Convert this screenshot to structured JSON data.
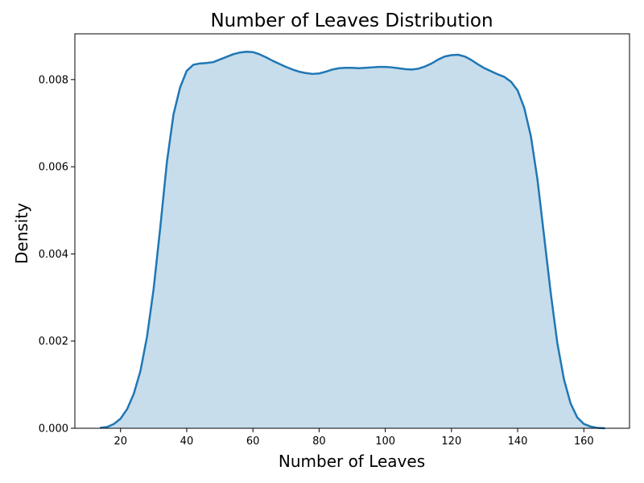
{
  "chart_data": {
    "type": "area",
    "title": "Number of Leaves Distribution",
    "xlabel": "Number of Leaves",
    "ylabel": "Density",
    "xlim": [
      6.2,
      173.8
    ],
    "ylim": [
      0,
      0.00905
    ],
    "xticks": [
      20,
      40,
      60,
      80,
      100,
      120,
      140,
      160
    ],
    "yticks": [
      0.0,
      0.002,
      0.004,
      0.006,
      0.008
    ],
    "ytick_labels": [
      "0.000",
      "0.002",
      "0.004",
      "0.006",
      "0.008"
    ],
    "grid": false,
    "colors": {
      "line": "#1f77b4",
      "fill": "#1f77b4",
      "fill_opacity": 0.25
    },
    "series": [
      {
        "x": [
          13.8,
          16,
          18,
          20,
          22,
          24,
          26,
          28,
          30,
          32,
          34,
          36,
          38,
          40,
          42,
          44,
          46,
          48,
          50,
          52,
          54,
          56,
          58,
          60,
          62,
          64,
          66,
          68,
          70,
          72,
          74,
          76,
          78,
          80,
          82,
          84,
          86,
          88,
          90,
          92,
          94,
          96,
          98,
          100,
          102,
          104,
          106,
          108,
          110,
          112,
          114,
          116,
          118,
          120,
          122,
          124,
          126,
          128,
          130,
          132,
          134,
          136,
          138,
          140,
          142,
          144,
          146,
          148,
          150,
          152,
          154,
          156,
          158,
          160,
          162,
          164,
          166.4
        ],
        "y": [
          1e-05,
          3e-05,
          0.0001,
          0.00022,
          0.00044,
          0.00079,
          0.00131,
          0.0021,
          0.0032,
          0.0046,
          0.0061,
          0.0072,
          0.00782,
          0.0082,
          0.00834,
          0.00837,
          0.00838,
          0.0084,
          0.00846,
          0.00852,
          0.00858,
          0.00862,
          0.00864,
          0.00863,
          0.00858,
          0.00851,
          0.00843,
          0.00836,
          0.00829,
          0.00823,
          0.00818,
          0.00815,
          0.00813,
          0.00814,
          0.00818,
          0.00823,
          0.00826,
          0.00827,
          0.00827,
          0.00826,
          0.00827,
          0.00828,
          0.00829,
          0.00829,
          0.00828,
          0.00826,
          0.00824,
          0.00823,
          0.00825,
          0.0083,
          0.00837,
          0.00846,
          0.00853,
          0.00856,
          0.00857,
          0.00853,
          0.00845,
          0.00835,
          0.00826,
          0.00819,
          0.00812,
          0.00806,
          0.00795,
          0.00775,
          0.00735,
          0.0067,
          0.0057,
          0.0044,
          0.0031,
          0.00195,
          0.00112,
          0.00057,
          0.00025,
          0.0001,
          4e-05,
          1e-05,
          0.0
        ]
      }
    ]
  }
}
